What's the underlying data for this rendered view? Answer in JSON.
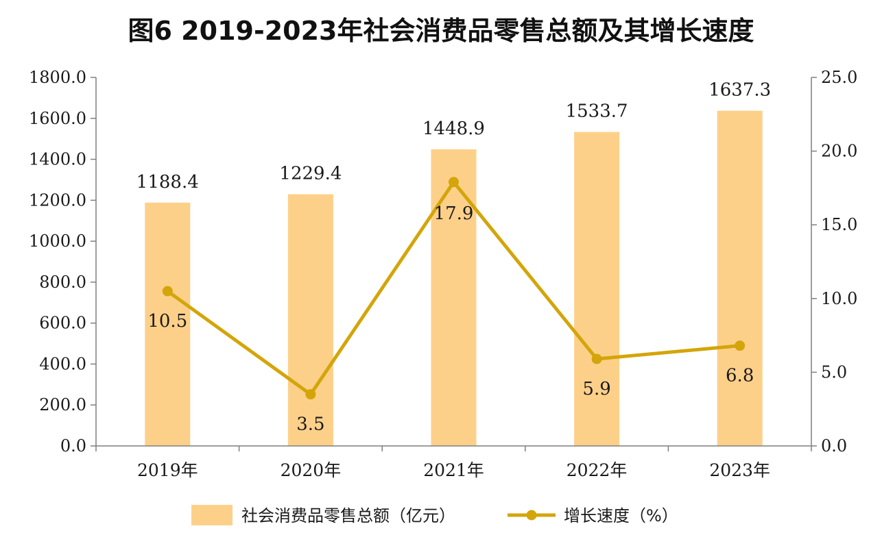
{
  "chart_data": {
    "type": "bar+line",
    "title": "图6  2019-2023年社会消费品零售总额及其增长速度",
    "categories": [
      "2019年",
      "2020年",
      "2021年",
      "2022年",
      "2023年"
    ],
    "series": [
      {
        "name": "社会消费品零售总额（亿元）",
        "type": "bar",
        "axis": "left",
        "values": [
          1188.4,
          1229.4,
          1448.9,
          1533.7,
          1637.3
        ],
        "labels": [
          "1188.4",
          "1229.4",
          "1448.9",
          "1533.7",
          "1637.3"
        ],
        "color": "#FDD08A"
      },
      {
        "name": "增长速度（%）",
        "type": "line",
        "axis": "right",
        "values": [
          10.5,
          3.5,
          17.9,
          5.9,
          6.8
        ],
        "labels": [
          "10.5",
          "3.5",
          "17.9",
          "5.9",
          "6.8"
        ],
        "color": "#D4A50A"
      }
    ],
    "y_left": {
      "min": 0,
      "max": 1800,
      "step": 200,
      "tick_labels": [
        "0.0",
        "200.0",
        "400.0",
        "600.0",
        "800.0",
        "1000.0",
        "1200.0",
        "1400.0",
        "1600.0",
        "1800.0"
      ]
    },
    "y_right": {
      "min": 0,
      "max": 25,
      "step": 5,
      "tick_labels": [
        "0.0",
        "5.0",
        "10.0",
        "15.0",
        "20.0",
        "25.0"
      ]
    },
    "grid": false,
    "legend": "bottom"
  }
}
